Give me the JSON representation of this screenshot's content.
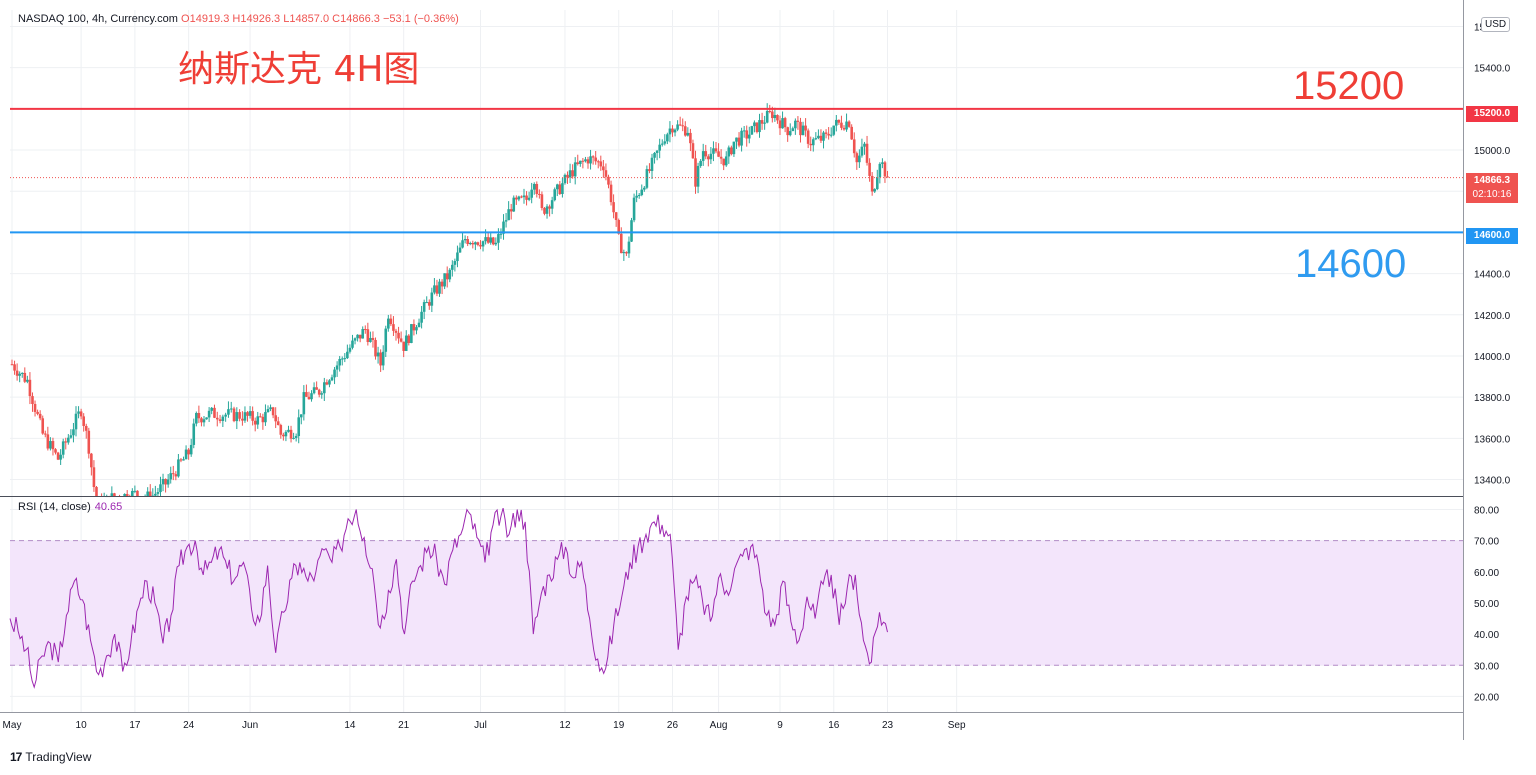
{
  "legend": {
    "symbol": "NASDAQ 100, 4h, Currency.com",
    "open": "O14919.3",
    "high": "H14926.3",
    "low": "L14857.0",
    "close": "C14866.3",
    "change": "−53.1 (−0.36%)"
  },
  "annotations": {
    "title": "纳斯达克 4H图",
    "resistance_text": "15200",
    "support_text": "14600"
  },
  "price_scale": {
    "currency": "USD",
    "resistance_label": "15200.0",
    "support_label": "14600.0",
    "current_price": "14866.3",
    "countdown": "02:10:16"
  },
  "rsi": {
    "label": "RSI (14, close)",
    "value": "40.65"
  },
  "branding": {
    "name": "TradingView",
    "logo_text": "17"
  },
  "colors": {
    "up": "#26a69a",
    "down": "#ef5350",
    "resistance": "#f23645",
    "support": "#2196f3",
    "rsi_line": "#9c27b0",
    "rsi_band": "#f3e5fb"
  },
  "chart_data": [
    {
      "type": "candlestick",
      "title": "NASDAQ 100, 4h, Currency.com",
      "x_ticks": [
        "May",
        "10",
        "17",
        "24",
        "Jun",
        "14",
        "21",
        "Jul",
        "12",
        "19",
        "26",
        "Aug",
        "9",
        "16",
        "23",
        "Sep"
      ],
      "y_ticks": [
        13400,
        13600,
        13800,
        14000,
        14200,
        14400,
        14600,
        14800,
        15000,
        15200,
        15400,
        15600
      ],
      "ylim": [
        13320,
        15680
      ],
      "horizontal_lines": [
        {
          "name": "15200",
          "value": 15200
        },
        {
          "name": "14600",
          "value": 14600
        },
        {
          "name": "current",
          "value": 14866.3
        }
      ],
      "close_path": [
        [
          "May 1",
          13960
        ],
        [
          "May 3",
          13880
        ],
        [
          "May 5",
          13620
        ],
        [
          "May 7",
          13500
        ],
        [
          "May 10",
          13740
        ],
        [
          "May 11",
          13560
        ],
        [
          "May 12",
          13270
        ],
        [
          "May 14",
          13310
        ],
        [
          "May 17",
          13330
        ],
        [
          "May 19",
          13310
        ],
        [
          "May 21",
          13380
        ],
        [
          "May 24",
          13530
        ],
        [
          "May 25",
          13700
        ],
        [
          "May 27",
          13720
        ],
        [
          "May 31",
          13710
        ],
        [
          "Jun 2",
          13690
        ],
        [
          "Jun 4",
          13730
        ],
        [
          "Jun 5",
          13620
        ],
        [
          "Jun 7",
          13640
        ],
        [
          "Jun 8",
          13790
        ],
        [
          "Jun 10",
          13830
        ],
        [
          "Jun 11",
          13890
        ],
        [
          "Jun 14",
          14040
        ],
        [
          "Jun 16",
          14130
        ],
        [
          "Jun 18",
          13960
        ],
        [
          "Jun 19",
          14210
        ],
        [
          "Jun 21",
          14050
        ],
        [
          "Jun 23",
          14190
        ],
        [
          "Jun 25",
          14310
        ],
        [
          "Jun 27",
          14400
        ],
        [
          "Jun 29",
          14570
        ],
        [
          "Jul 1",
          14560
        ],
        [
          "Jul 3",
          14540
        ],
        [
          "Jul 5",
          14730
        ],
        [
          "Jul 7",
          14760
        ],
        [
          "Jul 8",
          14870
        ],
        [
          "Jul 9",
          14700
        ],
        [
          "Jul 11",
          14800
        ],
        [
          "Jul 13",
          14900
        ],
        [
          "Jul 15",
          14960
        ],
        [
          "Jul 17",
          14930
        ],
        [
          "Jul 18",
          14770
        ],
        [
          "Jul 19",
          14560
        ],
        [
          "Jul 20",
          14480
        ],
        [
          "Jul 21",
          14750
        ],
        [
          "Jul 23",
          14900
        ],
        [
          "Jul 25",
          15070
        ],
        [
          "Jul 26",
          15120
        ],
        [
          "Jul 28",
          15100
        ],
        [
          "Jul 29",
          14850
        ],
        [
          "Jul 30",
          15000
        ],
        [
          "Aug 2",
          14950
        ],
        [
          "Aug 3",
          15040
        ],
        [
          "Aug 5",
          15080
        ],
        [
          "Aug 7",
          15150
        ],
        [
          "Aug 8",
          15180
        ],
        [
          "Aug 10",
          15100
        ],
        [
          "Aug 11",
          15130
        ],
        [
          "Aug 13",
          15040
        ],
        [
          "Aug 15",
          15060
        ],
        [
          "Aug 16",
          15120
        ],
        [
          "Aug 18",
          15140
        ],
        [
          "Aug 19",
          14940
        ],
        [
          "Aug 20",
          15020
        ],
        [
          "Aug 21",
          14780
        ],
        [
          "Aug 22",
          14960
        ],
        [
          "Aug 23",
          14866.3
        ]
      ]
    },
    {
      "type": "line",
      "title": "RSI (14, close)",
      "y_ticks": [
        20,
        30,
        40,
        50,
        60,
        70,
        80
      ],
      "ylim": [
        15,
        84
      ],
      "bands": [
        30,
        70
      ],
      "last_value": 40.65,
      "series": [
        {
          "name": "RSI (14, close)",
          "values": [
            45,
            41,
            35,
            23,
            33,
            37,
            31,
            46,
            57,
            51,
            38,
            27,
            33,
            40,
            28,
            37,
            49,
            57,
            50,
            37,
            46,
            62,
            68,
            70,
            59,
            63,
            67,
            61,
            58,
            63,
            48,
            44,
            62,
            34,
            47,
            58,
            63,
            57,
            60,
            67,
            63,
            68,
            77,
            80,
            71,
            61,
            42,
            54,
            64,
            40,
            57,
            62,
            68,
            64,
            56,
            67,
            72,
            79,
            71,
            63,
            75,
            78,
            72,
            80,
            76,
            40,
            53,
            59,
            64,
            68,
            58,
            63,
            45,
            32,
            29,
            43,
            52,
            63,
            68,
            72,
            76,
            75,
            72,
            35,
            52,
            57,
            51,
            44,
            58,
            54,
            61,
            65,
            68,
            62,
            46,
            43,
            57,
            44,
            38,
            52,
            45,
            56,
            59,
            43,
            55,
            59,
            38,
            31,
            47,
            41
          ]
        }
      ]
    }
  ]
}
